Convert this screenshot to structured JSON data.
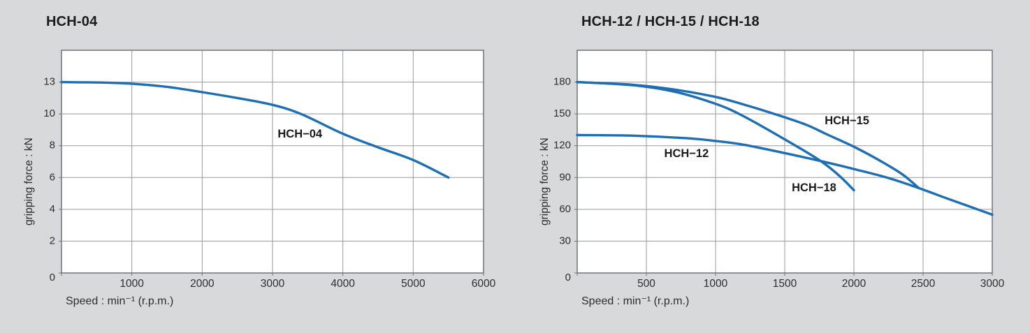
{
  "page_background": "#d8d9da",
  "colors": {
    "plot_background": "#ffffff",
    "grid": "#98999b",
    "plot_border": "#707376",
    "curve": "#1d6eb4",
    "title_text": "#1b1b1b",
    "tick_text": "#2e2e2e",
    "curve_label_text": "#1b1b1b"
  },
  "chart_data": [
    {
      "type": "line",
      "title": "HCH-04",
      "xlabel": "Speed : min⁻¹ (r.p.m.)",
      "ylabel": "gripping force : kN",
      "grid": "on",
      "xlim": [
        0,
        6000
      ],
      "x_ticks": [
        1000,
        2000,
        3000,
        4000,
        5000,
        6000
      ],
      "y_ticks": [
        0,
        2,
        4,
        6,
        8,
        10,
        13
      ],
      "y_origin_label": "0",
      "series": [
        {
          "name": "HCH−04",
          "label_x": 3390,
          "label_y": 8.7,
          "points": [
            [
              0,
              13
            ],
            [
              600,
              12.95
            ],
            [
              1000,
              12.85
            ],
            [
              1500,
              12.55
            ],
            [
              2000,
              12.05
            ],
            [
              2500,
              11.5
            ],
            [
              3000,
              10.85
            ],
            [
              3400,
              10
            ],
            [
              4000,
              8.75
            ],
            [
              4500,
              7.9
            ],
            [
              5000,
              7.1
            ],
            [
              5500,
              6
            ]
          ]
        }
      ]
    },
    {
      "type": "line",
      "title": "HCH-12 / HCH-15 / HCH-18",
      "xlabel": "Speed : min⁻¹ (r.p.m.)",
      "ylabel": "gripping force : kN",
      "grid": "on",
      "xlim": [
        0,
        3000
      ],
      "x_ticks": [
        500,
        1000,
        1500,
        2000,
        2500,
        3000
      ],
      "y_ticks": [
        0,
        30,
        60,
        90,
        120,
        150,
        180
      ],
      "y_origin_label": "0",
      "series": [
        {
          "name": "HCH−15",
          "label_x": 1950,
          "label_y": 143,
          "points": [
            [
              0,
              180
            ],
            [
              400,
              177.5
            ],
            [
              700,
              173
            ],
            [
              1000,
              166
            ],
            [
              1200,
              159
            ],
            [
              1400,
              151
            ],
            [
              1650,
              140
            ],
            [
              1800,
              131
            ],
            [
              2000,
              119
            ],
            [
              2200,
              105
            ],
            [
              2350,
              93
            ],
            [
              2470,
              80
            ]
          ]
        },
        {
          "name": "HCH−18",
          "label_x": 1712,
          "label_y": 80,
          "points": [
            [
              0,
              180
            ],
            [
              400,
              177
            ],
            [
              700,
              171
            ],
            [
              1000,
              159.5
            ],
            [
              1200,
              148
            ],
            [
              1500,
              126
            ],
            [
              1760,
              105.5
            ],
            [
              1900,
              91
            ],
            [
              2000,
              78
            ]
          ]
        },
        {
          "name": "HCH−12",
          "label_x": 790,
          "label_y": 112,
          "points": [
            [
              0,
              130
            ],
            [
              400,
              129.5
            ],
            [
              800,
              127
            ],
            [
              1000,
              124.5
            ],
            [
              1200,
              121
            ],
            [
              1500,
              113
            ],
            [
              1760,
              105.5
            ],
            [
              2000,
              98
            ],
            [
              2250,
              89.5
            ],
            [
              2470,
              80
            ],
            [
              2700,
              69
            ],
            [
              3000,
              55
            ]
          ]
        }
      ]
    }
  ]
}
